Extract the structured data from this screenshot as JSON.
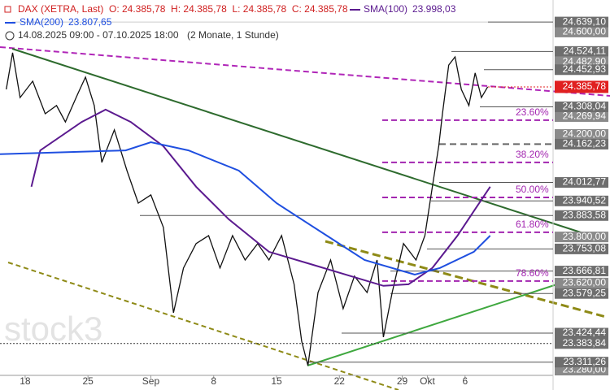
{
  "chart_data": {
    "type": "line",
    "header": {
      "ohlc": "O: 24.385,78  H: 24.385,78  L: 24.385,78  C: 24.385,78",
      "sma100_value": "23.998,03",
      "sma200_value": "23.807,65",
      "range": "14.08.2025 09:00 - 07.10.2025 18:00",
      "span": "(2 Monate, 1 Stunde)"
    },
    "watermark": "stock3",
    "xlim": [
      0,
      44
    ],
    "xticks": [
      {
        "value": 2,
        "label": "18"
      },
      {
        "value": 7,
        "label": "25"
      },
      {
        "value": 12,
        "label": "Sep"
      },
      {
        "value": 17,
        "label": "8"
      },
      {
        "value": 22,
        "label": "15"
      },
      {
        "value": 27,
        "label": "22"
      },
      {
        "value": 32,
        "label": "29"
      },
      {
        "value": 34,
        "label": "Okt"
      },
      {
        "value": 37,
        "label": "6"
      }
    ],
    "ylim": [
      23250,
      24725
    ],
    "series": [
      {
        "name": "DAX (XETRA, Last)",
        "color": "#111111",
        "x": [
          0.5,
          1,
          1.6,
          2.6,
          3.6,
          4.5,
          5.2,
          6.2,
          6.8,
          7.5,
          8.1,
          9.1,
          10.1,
          11,
          12,
          13,
          13.8,
          14.6,
          15.6,
          16.6,
          17.5,
          18.5,
          19.5,
          20.5,
          21.4,
          22.4,
          23.4,
          24,
          24.5,
          25.3,
          26.3,
          27.3,
          28.2,
          29.2,
          30,
          30.5,
          31.2,
          32.1,
          33.1,
          33.8,
          34.4,
          34.9,
          35.2,
          35.7,
          36.2,
          36.7,
          37.3,
          37.8,
          38.3,
          38.8
        ],
        "values": [
          24376,
          24519,
          24344,
          24408,
          24281,
          24313,
          24249,
          24360,
          24424,
          24313,
          24091,
          24218,
          24059,
          23932,
          23964,
          23837,
          23504,
          23679,
          23774,
          23805,
          23679,
          23805,
          23710,
          23774,
          23710,
          23805,
          23615,
          23393,
          23298,
          23583,
          23710,
          23520,
          23647,
          23583,
          23710,
          23409,
          23583,
          23774,
          23710,
          23805,
          23996,
          24154,
          24281,
          24471,
          24503,
          24376,
          24313,
          24440,
          24344,
          24386
        ]
      },
      {
        "name": "SMA(100)",
        "color": "#5b1a8f",
        "x": [
          2.5,
          3.2,
          6.5,
          8.4,
          10.4,
          13,
          15.6,
          18.2,
          21.4,
          24.7,
          27.9,
          30.5,
          32.5,
          34.4,
          36.4,
          37.7,
          39
        ],
        "values": [
          23996,
          24138,
          24249,
          24297,
          24249,
          24154,
          23996,
          23869,
          23742,
          23694,
          23647,
          23609,
          23615,
          23679,
          23805,
          23901,
          23996
        ]
      },
      {
        "name": "SMA(200)",
        "color": "#1f4fe0",
        "x": [
          0,
          10,
          12,
          15,
          19,
          22,
          26,
          29,
          33,
          35,
          37.7,
          39
        ],
        "values": [
          24123,
          24138,
          24170,
          24138,
          24059,
          23932,
          23805,
          23710,
          23653,
          23679,
          23742,
          23805
        ]
      }
    ],
    "grid_levels": [
      {
        "value": 24600,
        "label": "24.600,00"
      },
      {
        "value": 24482.9,
        "label": "24.482,90"
      },
      {
        "value": 24269.94,
        "label": "24.269,94"
      },
      {
        "value": 24200,
        "label": "24.200,00"
      },
      {
        "value": 23800,
        "label": "23.800,00"
      },
      {
        "value": 23620,
        "label": "23.620,00"
      },
      {
        "value": 23280,
        "label": "23.280,00"
      }
    ],
    "price_levels": [
      {
        "value": 24639.1,
        "label": "24.639,10"
      },
      {
        "value": 24524.11,
        "label": "24.524,11"
      },
      {
        "value": 24452.93,
        "label": "24.452,93"
      },
      {
        "value": 24308.04,
        "label": "24.308,04"
      },
      {
        "value": 24162.23,
        "label": "24.162,23"
      },
      {
        "value": 24012.77,
        "label": "24.012,77"
      },
      {
        "value": 23940.52,
        "label": "23.940,52"
      },
      {
        "value": 23883.58,
        "label": "23.883,58"
      },
      {
        "value": 23753.08,
        "label": "23.753,08"
      },
      {
        "value": 23666.81,
        "label": "23.666,81"
      },
      {
        "value": 23579.25,
        "label": "23.579,25"
      },
      {
        "value": 23424.44,
        "label": "23.424,44"
      },
      {
        "value": 23383.84,
        "label": "23.383,84"
      },
      {
        "value": 23311.26,
        "label": "23.311,26"
      }
    ],
    "last_price": {
      "value": 24385.78,
      "label": "24.385,78"
    },
    "fib_levels": {
      "labels": [
        "23.60%",
        "38.20%",
        "50.00%",
        "61.80%",
        "78.60%"
      ],
      "values": [
        24256,
        24091,
        23954,
        23818,
        23628
      ]
    }
  }
}
